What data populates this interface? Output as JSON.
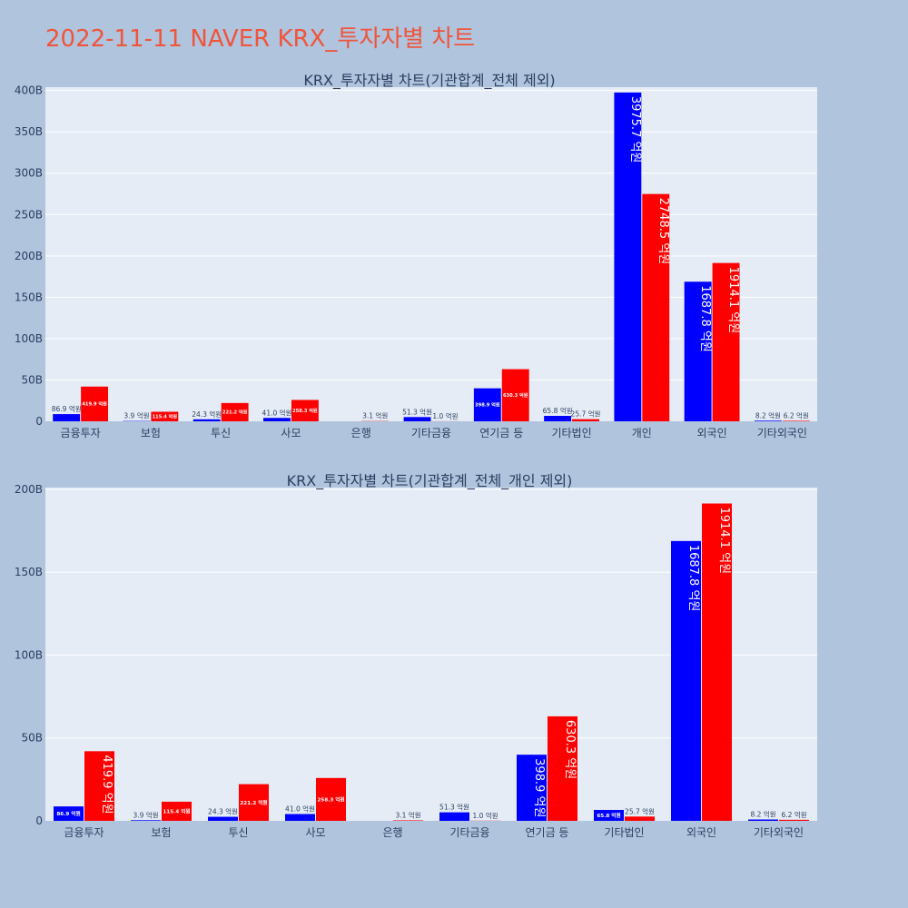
{
  "title": "2022-11-11 NAVER KRX_투자자별 차트",
  "colors": {
    "background": "#b0c4de",
    "plot_bg": "#e5ecf6",
    "grid": "#ffffff",
    "title": "#ef553b",
    "text": "#2a3f5f",
    "buy": "#0000ff",
    "sell": "#ff0000"
  },
  "chart_data": [
    {
      "type": "bar",
      "title": "KRX_투자자별 차트(기관합계_전체 제외)",
      "categories": [
        "금융투자",
        "보험",
        "투신",
        "사모",
        "은행",
        "기타금융",
        "연기금 등",
        "기타법인",
        "개인",
        "외국인",
        "기타외국인"
      ],
      "series": [
        {
          "color": "#0000ff",
          "values": [
            8.69,
            0.39,
            2.43,
            4.1,
            0,
            5.13,
            39.89,
            6.58,
            397.57,
            168.78,
            0.82
          ],
          "labels": [
            "86.9 억원",
            "3.9 억원",
            "24.3 억원",
            "41.0 억원",
            "",
            "51.3 억원",
            "398.9 억원",
            "65.8 억원",
            "3975.7 억원",
            "1687.8 억원",
            "8.2 억원"
          ]
        },
        {
          "color": "#ff0000",
          "values": [
            41.99,
            11.54,
            22.12,
            25.83,
            0.31,
            0.1,
            63.03,
            2.57,
            274.85,
            191.41,
            0.62
          ],
          "labels": [
            "419.9 억원",
            "115.4 억원",
            "221.2 억원",
            "258.3 억원",
            "3.1 억원",
            "1.0 억원",
            "630.3 억원",
            "25.7 억원",
            "2748.5 억원",
            "1914.1 억원",
            "6.2 억원"
          ]
        }
      ],
      "y_ticks": [
        {
          "value": 0,
          "label": "0"
        },
        {
          "value": 50,
          "label": "50B"
        },
        {
          "value": 100,
          "label": "100B"
        },
        {
          "value": 150,
          "label": "150B"
        },
        {
          "value": 200,
          "label": "200B"
        },
        {
          "value": 250,
          "label": "250B"
        },
        {
          "value": 300,
          "label": "300B"
        },
        {
          "value": 350,
          "label": "350B"
        },
        {
          "value": 400,
          "label": "400B"
        }
      ],
      "ylim": [
        0,
        404
      ]
    },
    {
      "type": "bar",
      "title": "KRX_투자자별 차트(기관합계_전체_개인 제외)",
      "categories": [
        "금융투자",
        "보험",
        "투신",
        "사모",
        "은행",
        "기타금융",
        "연기금 등",
        "기타법인",
        "외국인",
        "기타외국인"
      ],
      "series": [
        {
          "color": "#0000ff",
          "values": [
            8.69,
            0.39,
            2.43,
            4.1,
            0,
            5.13,
            39.89,
            6.58,
            168.78,
            0.82
          ],
          "labels": [
            "86.9 억원",
            "3.9 억원",
            "24.3 억원",
            "41.0 억원",
            "",
            "51.3 억원",
            "398.9 억원",
            "65.8 억원",
            "1687.8 억원",
            "8.2 억원"
          ]
        },
        {
          "color": "#ff0000",
          "values": [
            41.99,
            11.54,
            22.12,
            25.83,
            0.31,
            0.1,
            63.03,
            2.57,
            191.41,
            0.62
          ],
          "labels": [
            "419.9 억원",
            "115.4 억원",
            "221.2 억원",
            "258.3 억원",
            "3.1 억원",
            "1.0 억원",
            "630.3 억원",
            "25.7 억원",
            "1914.1 억원",
            "6.2 억원"
          ]
        }
      ],
      "y_ticks": [
        {
          "value": 0,
          "label": "0"
        },
        {
          "value": 50,
          "label": "50B"
        },
        {
          "value": 100,
          "label": "100B"
        },
        {
          "value": 150,
          "label": "150B"
        },
        {
          "value": 200,
          "label": "200B"
        }
      ],
      "ylim": [
        0,
        201
      ]
    }
  ]
}
